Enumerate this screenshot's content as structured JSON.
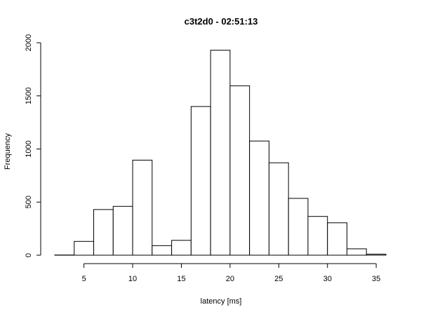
{
  "chart_data": {
    "type": "bar",
    "title": "c3t2d0 - 02:51:13",
    "xlabel": "latency [ms]",
    "ylabel": "Frequency",
    "bin_edges": [
      2,
      4,
      6,
      8,
      10,
      12,
      14,
      16,
      18,
      20,
      22,
      24,
      26,
      28,
      30,
      32,
      34,
      36
    ],
    "values": [
      2,
      130,
      430,
      460,
      895,
      90,
      140,
      1400,
      1930,
      1595,
      1075,
      870,
      535,
      365,
      305,
      60,
      10
    ],
    "xlim": [
      2,
      36
    ],
    "ylim": [
      0,
      2000
    ],
    "xticks": [
      5,
      10,
      15,
      20,
      25,
      30,
      35
    ],
    "yticks": [
      0,
      500,
      1000,
      1500,
      2000
    ],
    "grid": false,
    "bar_fill": "#ffffff",
    "bar_stroke": "#000000"
  }
}
